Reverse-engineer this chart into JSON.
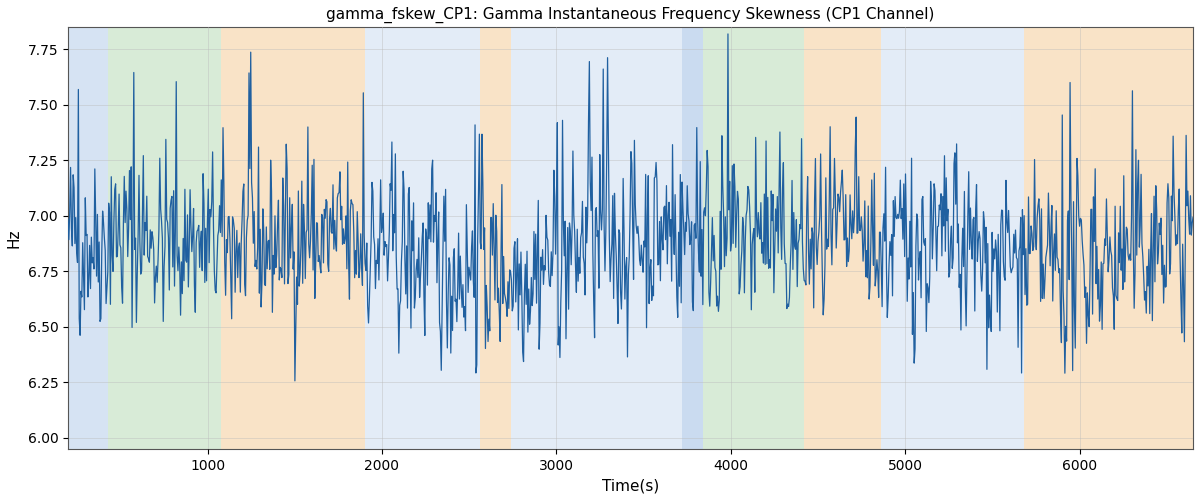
{
  "title": "gamma_fskew_CP1: Gamma Instantaneous Frequency Skewness (CP1 Channel)",
  "xlabel": "Time(s)",
  "ylabel": "Hz",
  "ylim": [
    5.95,
    7.85
  ],
  "xlim": [
    200,
    6650
  ],
  "line_color": "#2060a0",
  "line_width": 0.9,
  "bg_regions": [
    {
      "xmin": 200,
      "xmax": 430,
      "color": "#aec8e8",
      "alpha": 0.5
    },
    {
      "xmin": 430,
      "xmax": 1080,
      "color": "#b2d8b0",
      "alpha": 0.5
    },
    {
      "xmin": 1080,
      "xmax": 1900,
      "color": "#f5c990",
      "alpha": 0.5
    },
    {
      "xmin": 1900,
      "xmax": 2560,
      "color": "#c8daf0",
      "alpha": 0.5
    },
    {
      "xmin": 2560,
      "xmax": 2740,
      "color": "#f5c990",
      "alpha": 0.5
    },
    {
      "xmin": 2740,
      "xmax": 3720,
      "color": "#c8daf0",
      "alpha": 0.5
    },
    {
      "xmin": 3720,
      "xmax": 3840,
      "color": "#aec8e8",
      "alpha": 0.65
    },
    {
      "xmin": 3840,
      "xmax": 4420,
      "color": "#b2d8b0",
      "alpha": 0.5
    },
    {
      "xmin": 4420,
      "xmax": 4860,
      "color": "#f5c990",
      "alpha": 0.5
    },
    {
      "xmin": 4860,
      "xmax": 5680,
      "color": "#c8daf0",
      "alpha": 0.5
    },
    {
      "xmin": 5680,
      "xmax": 6650,
      "color": "#f5c990",
      "alpha": 0.5
    }
  ],
  "seed": 42,
  "n_points": 1300,
  "mean": 6.85,
  "std": 0.19,
  "grid_color": "#bbbbbb",
  "grid_alpha": 0.6,
  "xticks": [
    1000,
    2000,
    3000,
    4000,
    5000,
    6000
  ],
  "yticks": [
    6.0,
    6.25,
    6.5,
    6.75,
    7.0,
    7.25,
    7.5,
    7.75
  ],
  "figsize": [
    12.0,
    5.0
  ],
  "dpi": 100
}
